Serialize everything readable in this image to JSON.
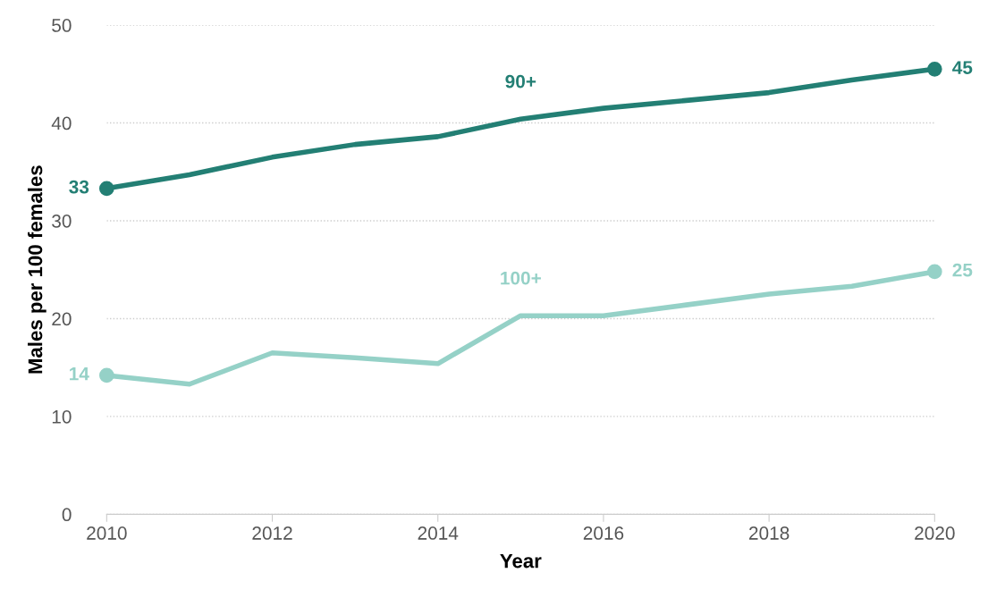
{
  "chart_data": {
    "type": "line",
    "xlabel": "Year",
    "ylabel": "Males per 100 females",
    "x": [
      2010,
      2011,
      2012,
      2013,
      2014,
      2015,
      2016,
      2017,
      2018,
      2019,
      2020
    ],
    "series": [
      {
        "name": "90+",
        "color": "#237f74",
        "values": [
          33.3,
          34.7,
          36.5,
          37.8,
          38.6,
          40.4,
          41.5,
          42.3,
          43.1,
          44.4,
          45.5
        ],
        "value_labels": [
          "33",
          null,
          null,
          null,
          null,
          null,
          null,
          null,
          null,
          null,
          "45"
        ]
      },
      {
        "name": "100+",
        "color": "#95d1c7",
        "values": [
          14.2,
          13.3,
          16.5,
          16.0,
          15.4,
          20.3,
          20.3,
          21.4,
          22.5,
          23.3,
          24.8
        ],
        "value_labels": [
          "14",
          null,
          null,
          null,
          null,
          null,
          null,
          null,
          null,
          null,
          "25"
        ]
      }
    ],
    "xlim": [
      2010,
      2020
    ],
    "xticks": [
      2010,
      2012,
      2014,
      2016,
      2018,
      2020
    ],
    "ylim": [
      0,
      50
    ],
    "yticks": [
      0,
      10,
      20,
      30,
      40,
      50
    ],
    "grid": "y",
    "legend": false
  }
}
